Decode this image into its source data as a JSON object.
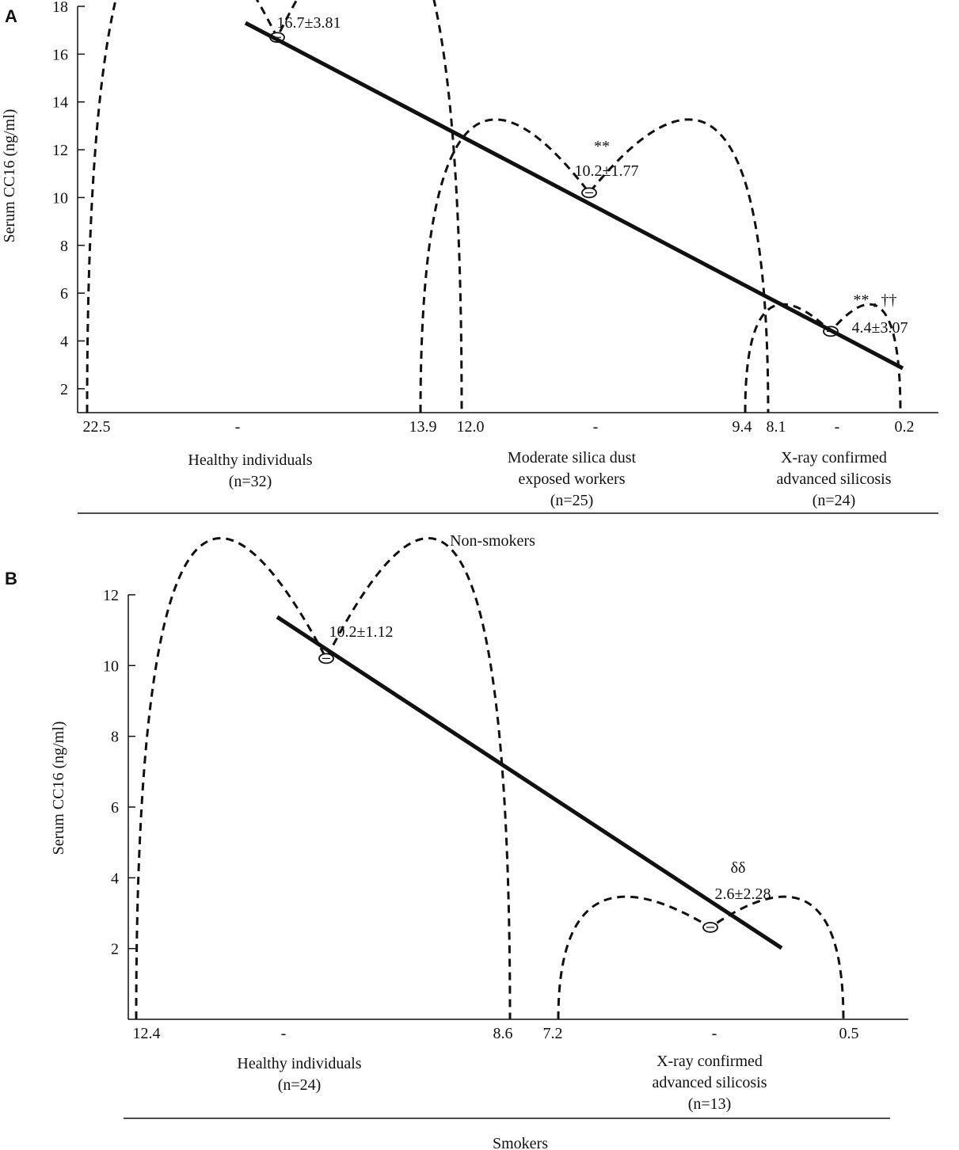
{
  "chart_data": [
    {
      "panel": "A",
      "type": "scatter",
      "ylabel": "Serum CC16 (ng/ml)",
      "ylim": [
        1,
        18
      ],
      "yticks": [
        2,
        4,
        6,
        8,
        10,
        12,
        14,
        16,
        18
      ],
      "group_title": "Non-smokers",
      "x_tick_labels": [
        "22.5",
        "-",
        "13.9",
        "12.0",
        "-",
        "9.4",
        "8.1",
        "-",
        "0.2"
      ],
      "groups": [
        {
          "label_lines": [
            "Healthy individuals",
            "(n=32)"
          ],
          "mean": 16.7,
          "range": [
            22.5,
            12.0
          ],
          "annotation": "16.7±3.81",
          "significance": ""
        },
        {
          "label_lines": [
            "Moderate silica dust",
            "exposed  workers",
            "(n=25)"
          ],
          "mean": 10.2,
          "range": [
            13.9,
            8.1
          ],
          "annotation": "10.2±1.77",
          "significance": "**"
        },
        {
          "label_lines": [
            "X-ray confirmed",
            "advanced silicosis",
            "(n=24)"
          ],
          "mean": 4.4,
          "range": [
            9.4,
            0.2
          ],
          "annotation": "4.4±3.07",
          "significance": "** , ††"
        }
      ]
    },
    {
      "panel": "B",
      "type": "scatter",
      "ylabel": "Serum CC16 (ng/ml)",
      "ylim": [
        0,
        12
      ],
      "yticks": [
        2,
        4,
        6,
        8,
        10,
        12
      ],
      "group_title": "Smokers",
      "x_tick_labels": [
        "12.4",
        "-",
        "8.6",
        "7.2",
        "-",
        "0.5"
      ],
      "groups": [
        {
          "label_lines": [
            "Healthy individuals",
            "(n=24)"
          ],
          "mean": 10.2,
          "range": [
            12.4,
            8.6
          ],
          "annotation": "10.2±1.12",
          "significance": ""
        },
        {
          "label_lines": [
            "X-ray confirmed",
            "advanced silicosis",
            "(n=13)"
          ],
          "mean": 2.6,
          "range": [
            7.2,
            0.5
          ],
          "annotation": "2.6±2.28",
          "significance": "δδ"
        }
      ]
    }
  ]
}
